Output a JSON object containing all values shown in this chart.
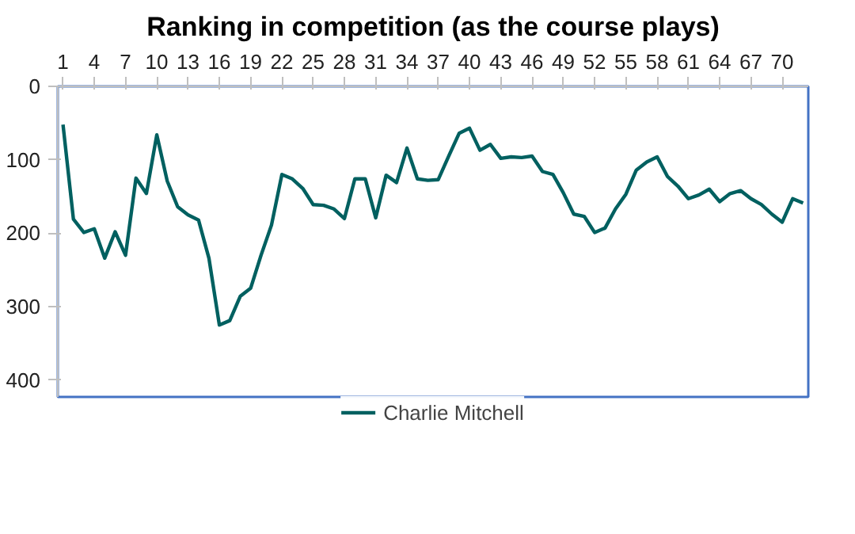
{
  "chart_data": {
    "type": "line",
    "title": "Ranking in competition (as the course plays)",
    "x": [
      1,
      2,
      3,
      4,
      5,
      6,
      7,
      8,
      9,
      10,
      11,
      12,
      13,
      14,
      15,
      16,
      17,
      18,
      19,
      20,
      21,
      22,
      23,
      24,
      25,
      26,
      27,
      28,
      29,
      30,
      31,
      32,
      33,
      34,
      35,
      36,
      37,
      38,
      39,
      40,
      41,
      42,
      43,
      44,
      45,
      46,
      47,
      48,
      49,
      50,
      51,
      52,
      53,
      54,
      55,
      56,
      57,
      58,
      59,
      60,
      61,
      62,
      63,
      64,
      65,
      66,
      67,
      68,
      69,
      70,
      71,
      72
    ],
    "series": [
      {
        "name": "Charlie Mitchell",
        "color": "#006060",
        "values": [
          52,
          181,
          199,
          194,
          234,
          198,
          230,
          125,
          146,
          66,
          129,
          164,
          175,
          182,
          234,
          325,
          319,
          286,
          275,
          230,
          189,
          120,
          126,
          139,
          161,
          162,
          167,
          180,
          126,
          126,
          179,
          121,
          131,
          84,
          126,
          128,
          127,
          95,
          64,
          57,
          87,
          79,
          98,
          96,
          97,
          95,
          116,
          120,
          145,
          174,
          177,
          199,
          193,
          167,
          147,
          114,
          103,
          96,
          123,
          136,
          153,
          148,
          140,
          157,
          146,
          142,
          153,
          161,
          174,
          185,
          153,
          159
        ]
      }
    ],
    "xlim": [
      0.5,
      72.5
    ],
    "xticks": [
      1,
      4,
      7,
      10,
      13,
      16,
      19,
      22,
      25,
      28,
      31,
      34,
      37,
      40,
      43,
      46,
      49,
      52,
      55,
      58,
      61,
      64,
      67,
      70
    ],
    "ylim": [
      423,
      0
    ],
    "yticks": [
      0,
      100,
      200,
      300,
      400
    ],
    "grid": false,
    "legend": "bottom",
    "marker": "none",
    "line_style": "solid"
  }
}
